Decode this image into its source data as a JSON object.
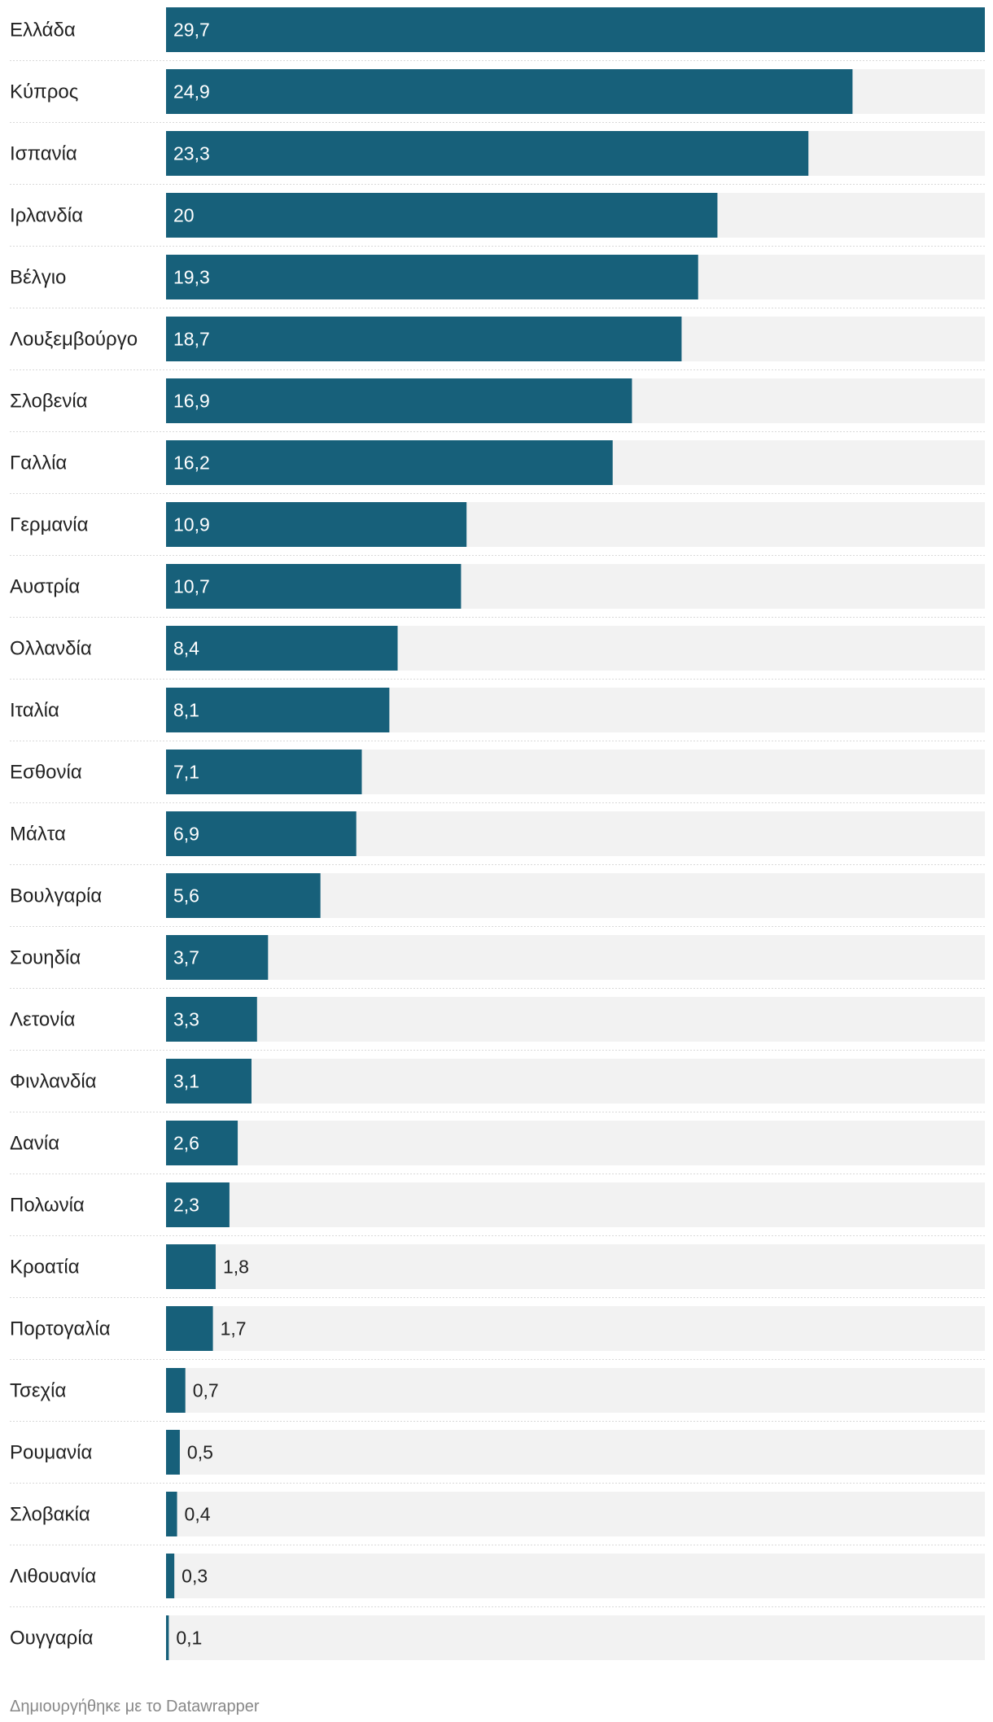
{
  "chart_data": {
    "type": "bar",
    "orientation": "horizontal",
    "categories": [
      "Ελλάδα",
      "Κύπρος",
      "Ισπανία",
      "Ιρλανδία",
      "Βέλγιο",
      "Λουξεμβούργο",
      "Σλοβενία",
      "Γαλλία",
      "Γερμανία",
      "Αυστρία",
      "Ολλανδία",
      "Ιταλία",
      "Εσθονία",
      "Μάλτα",
      "Βουλγαρία",
      "Σουηδία",
      "Λετονία",
      "Φινλανδία",
      "Δανία",
      "Πολωνία",
      "Κροατία",
      "Πορτογαλία",
      "Τσεχία",
      "Ρουμανία",
      "Σλοβακία",
      "Λιθουανία",
      "Ουγγαρία"
    ],
    "values": [
      29.7,
      24.9,
      23.3,
      20,
      19.3,
      18.7,
      16.9,
      16.2,
      10.9,
      10.7,
      8.4,
      8.1,
      7.1,
      6.9,
      5.6,
      3.7,
      3.3,
      3.1,
      2.6,
      2.3,
      1.8,
      1.7,
      0.7,
      0.5,
      0.4,
      0.3,
      0.1
    ],
    "value_labels": [
      "29,7",
      "24,9",
      "23,3",
      "20",
      "19,3",
      "18,7",
      "16,9",
      "16,2",
      "10,9",
      "10,7",
      "8,4",
      "8,1",
      "7,1",
      "6,9",
      "5,6",
      "3,7",
      "3,3",
      "3,1",
      "2,6",
      "2,3",
      "1,8",
      "1,7",
      "0,7",
      "0,5",
      "0,4",
      "0,3",
      "0,1"
    ],
    "xlim": [
      0,
      29.7
    ],
    "bar_color": "#17607a",
    "track_color": "#f2f2f2",
    "separator_color": "#d9d9d9"
  },
  "footer": {
    "credit": "Δημιουργήθηκε με το Datawrapper"
  }
}
